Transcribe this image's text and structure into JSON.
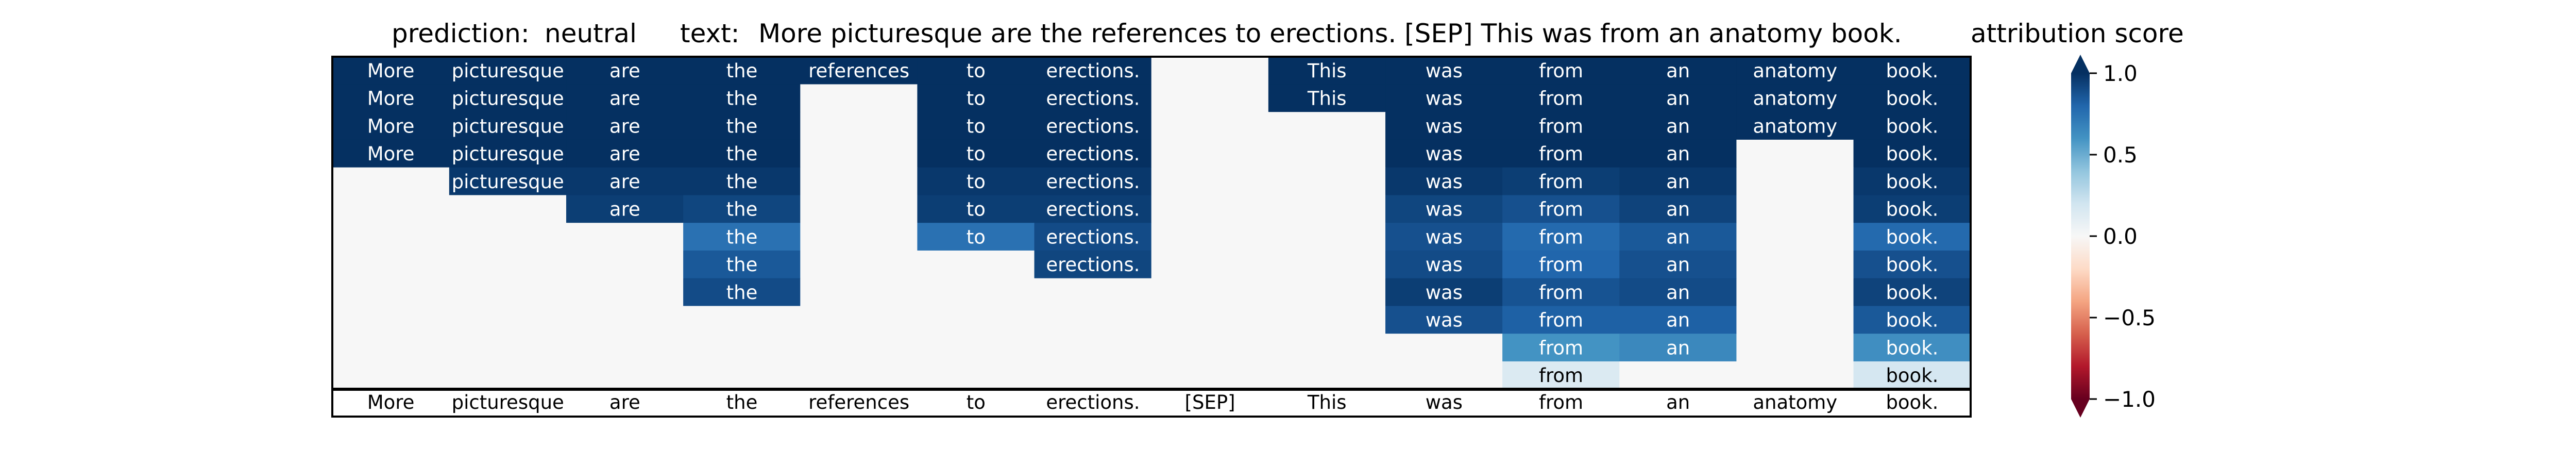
{
  "header": {
    "prediction_label": "prediction:",
    "prediction_value": "neutral",
    "text_label": "text:",
    "text_value": "More picturesque are the references to erections. [SEP] This was from an anatomy book."
  },
  "colorbar": {
    "title": "attribution score",
    "ticks": [
      1.0,
      0.5,
      0.0,
      -0.5,
      -1.0
    ],
    "tick_labels": [
      "1.0",
      "0.5",
      "0.0",
      "−0.5",
      "−1.0"
    ],
    "colors": [
      "#67001f",
      "#b2182b",
      "#d6604d",
      "#f4a582",
      "#fddbc7",
      "#f7f7f7",
      "#d1e5f0",
      "#92c5de",
      "#4393c3",
      "#2166ac",
      "#053061"
    ]
  },
  "chart_data": {
    "type": "heatmap",
    "title": "attribution score",
    "tokens": [
      "More",
      "picturesque",
      "are",
      "the",
      "references",
      "to",
      "erections.",
      "[SEP]",
      "This",
      "was",
      "from",
      "an",
      "anatomy",
      "book."
    ],
    "vmin": -1.0,
    "vmax": 1.0,
    "rows": [
      [
        1.0,
        1.0,
        1.0,
        1.0,
        1.0,
        1.0,
        1.0,
        0.0,
        1.0,
        1.0,
        1.0,
        1.0,
        1.0,
        1.0
      ],
      [
        1.0,
        1.0,
        1.0,
        1.0,
        0.0,
        1.0,
        1.0,
        0.0,
        1.0,
        1.0,
        1.0,
        1.0,
        1.0,
        1.0
      ],
      [
        1.0,
        1.0,
        1.0,
        1.0,
        0.0,
        1.0,
        1.0,
        0.0,
        0.0,
        1.0,
        1.0,
        1.0,
        1.0,
        1.0
      ],
      [
        1.0,
        1.0,
        1.0,
        1.0,
        0.0,
        1.0,
        1.0,
        0.0,
        0.0,
        1.0,
        1.0,
        1.0,
        0.0,
        1.0
      ],
      [
        0.0,
        0.97,
        0.97,
        0.97,
        0.0,
        0.97,
        0.97,
        0.0,
        0.0,
        0.97,
        0.95,
        0.97,
        0.0,
        0.97
      ],
      [
        0.0,
        0.0,
        0.95,
        0.92,
        0.0,
        0.95,
        0.95,
        0.0,
        0.0,
        0.92,
        0.88,
        0.93,
        0.0,
        0.95
      ],
      [
        0.0,
        0.0,
        0.0,
        0.75,
        0.0,
        0.75,
        0.9,
        0.0,
        0.0,
        0.88,
        0.78,
        0.85,
        0.0,
        0.78
      ],
      [
        0.0,
        0.0,
        0.0,
        0.85,
        0.0,
        0.0,
        0.92,
        0.0,
        0.0,
        0.9,
        0.8,
        0.88,
        0.0,
        0.88
      ],
      [
        0.0,
        0.0,
        0.0,
        0.9,
        0.0,
        0.0,
        0.0,
        0.0,
        0.0,
        0.95,
        0.87,
        0.9,
        0.0,
        0.93
      ],
      [
        0.0,
        0.0,
        0.0,
        0.0,
        0.0,
        0.0,
        0.0,
        0.0,
        0.0,
        0.88,
        0.82,
        0.82,
        0.0,
        0.85
      ],
      [
        0.0,
        0.0,
        0.0,
        0.0,
        0.0,
        0.0,
        0.0,
        0.0,
        0.0,
        0.0,
        0.6,
        0.65,
        0.0,
        0.62
      ],
      [
        0.0,
        0.0,
        0.0,
        0.0,
        0.0,
        0.0,
        0.0,
        0.0,
        0.0,
        0.0,
        0.15,
        0.0,
        0.0,
        0.18
      ]
    ]
  }
}
